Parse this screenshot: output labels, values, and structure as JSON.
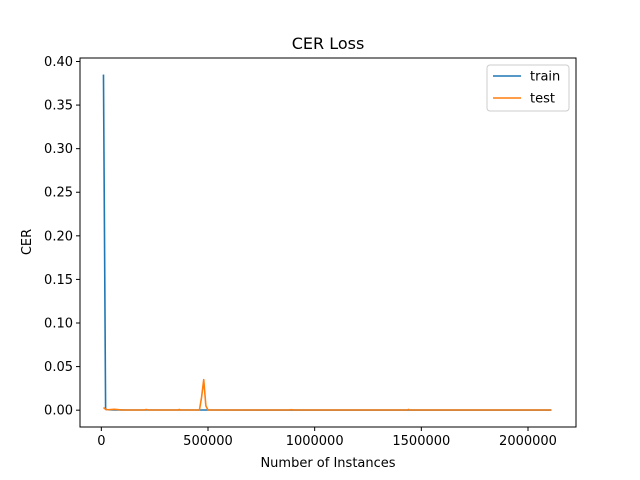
{
  "chart_data": {
    "type": "line",
    "title": "CER Loss",
    "xlabel": "Number of Instances",
    "ylabel": "CER",
    "xlim": [
      -100000,
      2225000
    ],
    "ylim": [
      -0.0193,
      0.404
    ],
    "xticks": [
      0,
      500000,
      1000000,
      1500000,
      2000000
    ],
    "xtick_labels": [
      "0",
      "500000",
      "1000000",
      "1500000",
      "2000000"
    ],
    "yticks": [
      0.0,
      0.05,
      0.1,
      0.15,
      0.2,
      0.25,
      0.3,
      0.35,
      0.4
    ],
    "ytick_labels": [
      "0.00",
      "0.05",
      "0.10",
      "0.15",
      "0.20",
      "0.25",
      "0.30",
      "0.35",
      "0.40"
    ],
    "grid": false,
    "legend_position": "top-right",
    "series": [
      {
        "name": "train",
        "color": "#1f77b4",
        "x": [
          10000,
          20000,
          30000,
          60000,
          120000,
          250000,
          500000,
          1000000,
          1500000,
          2000000,
          2110000
        ],
        "y": [
          0.385,
          0.001,
          0.0005,
          0.0003,
          0.0002,
          0.0002,
          0.0002,
          0.0001,
          0.0001,
          0.0001,
          0.0001
        ]
      },
      {
        "name": "test",
        "color": "#ff7f0e",
        "x": [
          10000,
          20000,
          30000,
          60000,
          100000,
          200000,
          210000,
          220000,
          360000,
          365000,
          370000,
          460000,
          470000,
          480000,
          490000,
          500000,
          700000,
          880000,
          890000,
          900000,
          1200000,
          1435000,
          1440000,
          1445000,
          1700000,
          2000000,
          2110000
        ],
        "y": [
          0.003,
          0.001,
          0.0005,
          0.001,
          0.0002,
          0.0002,
          0.0008,
          0.0002,
          0.0002,
          0.0008,
          0.0002,
          0.0003,
          0.015,
          0.035,
          0.005,
          0.0002,
          0.0002,
          0.0002,
          0.0006,
          0.0002,
          0.0002,
          0.0002,
          0.0008,
          0.0002,
          0.0002,
          0.0002,
          0.0002
        ]
      }
    ]
  }
}
